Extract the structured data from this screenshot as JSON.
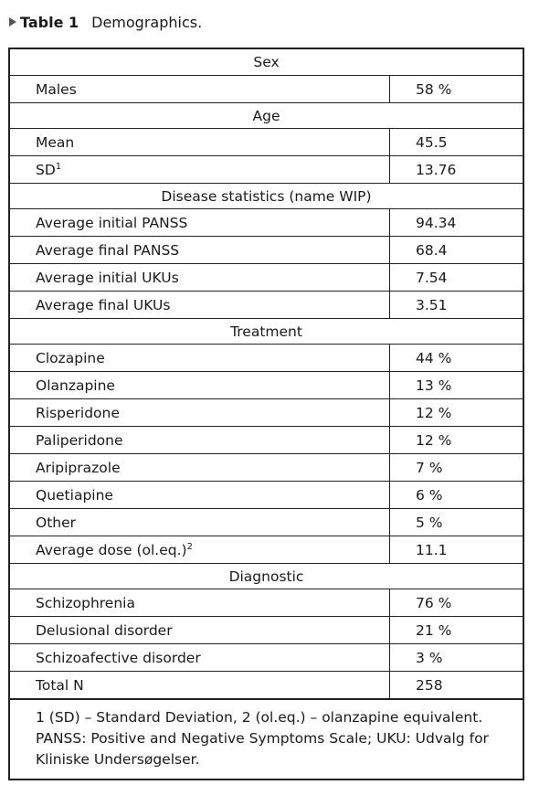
{
  "caption": {
    "label": "Table 1",
    "title": "Demographics."
  },
  "sections": {
    "sex": {
      "heading": "Sex",
      "rows": [
        {
          "name": "Males",
          "value": "58 %"
        }
      ]
    },
    "age": {
      "heading": "Age",
      "rows": [
        {
          "name": "Mean",
          "value": "45.5"
        },
        {
          "name": "SD",
          "sup": "1",
          "value": "13.76"
        }
      ]
    },
    "disease": {
      "heading": "Disease statistics (name WIP)",
      "rows": [
        {
          "name": "Average initial PANSS",
          "value": "94.34"
        },
        {
          "name": "Average final PANSS",
          "value": "68.4"
        },
        {
          "name": "Average initial UKUs",
          "value": "7.54"
        },
        {
          "name": "Average final UKUs",
          "value": "3.51"
        }
      ]
    },
    "treatment": {
      "heading": "Treatment",
      "rows": [
        {
          "name": "Clozapine",
          "value": "44 %"
        },
        {
          "name": "Olanzapine",
          "value": "13 %"
        },
        {
          "name": "Risperidone",
          "value": "12 %"
        },
        {
          "name": "Paliperidone",
          "value": "12 %"
        },
        {
          "name": "Aripiprazole",
          "value": "7 %"
        },
        {
          "name": "Quetiapine",
          "value": "6 %"
        },
        {
          "name": "Other",
          "value": "5 %"
        },
        {
          "name": "Average dose (ol.eq.)",
          "sup": "2",
          "value": "11.1"
        }
      ]
    },
    "diagnostic": {
      "heading": "Diagnostic",
      "rows": [
        {
          "name": "Schizophrenia",
          "value": "76 %"
        },
        {
          "name": "Delusional disorder",
          "value": "21 %"
        },
        {
          "name": "Schizoafective disorder",
          "value": "3 %"
        },
        {
          "name": "Total N",
          "value": "258"
        }
      ]
    }
  },
  "footnote": "1 (SD) – Standard Deviation, 2 (ol.eq.) – olanzapine equivalent. PANSS: Positive and Negative Symptoms Scale; UKU: Udvalg for Kliniske Undersøgelser."
}
